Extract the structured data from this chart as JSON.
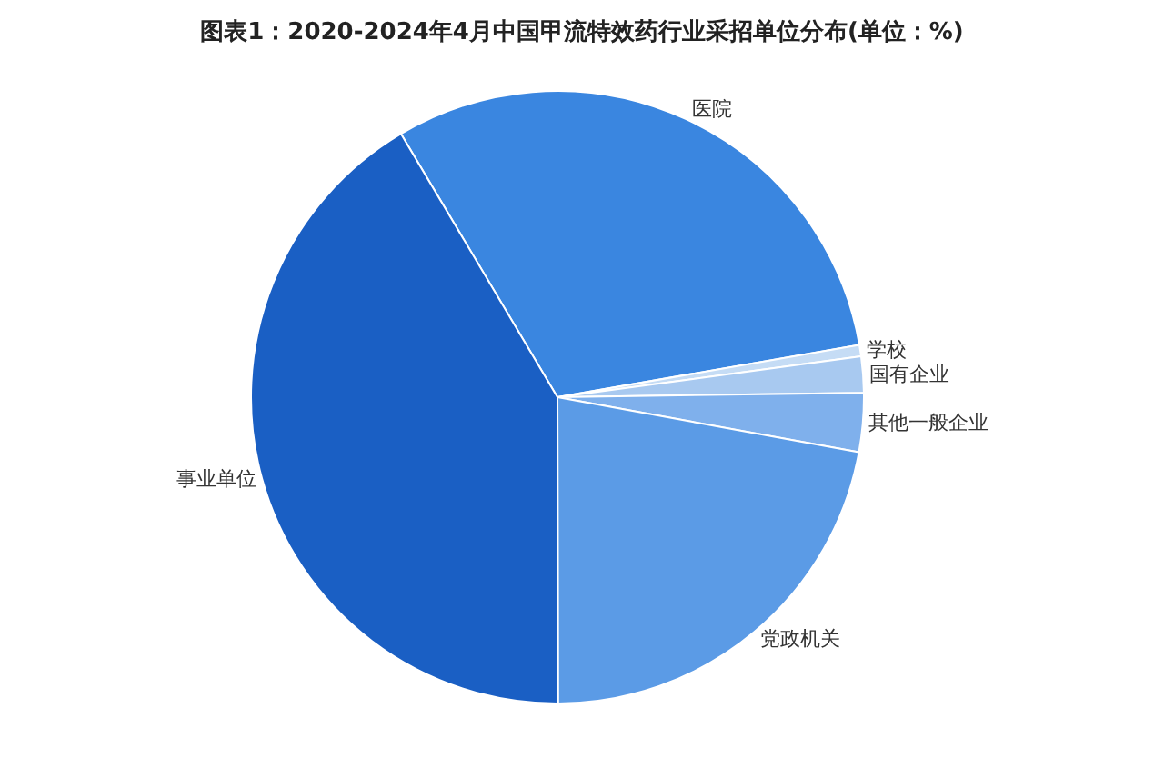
{
  "chart_data": {
    "type": "pie",
    "title": "图表1：2020-2024年4月中国甲流特效药行业采招单位分布(单位：%)",
    "categories": [
      "医院",
      "学校",
      "国有企业",
      "其他一般企业",
      "党政机关",
      "事业单位"
    ],
    "values": [
      30.8,
      0.6,
      1.9,
      3.1,
      22.1,
      41.5
    ],
    "colors": [
      "#3a86e0",
      "#c5dcf5",
      "#a8c9f0",
      "#7fb0ec",
      "#5b9be6",
      "#1a5fc4"
    ],
    "legend": false
  }
}
